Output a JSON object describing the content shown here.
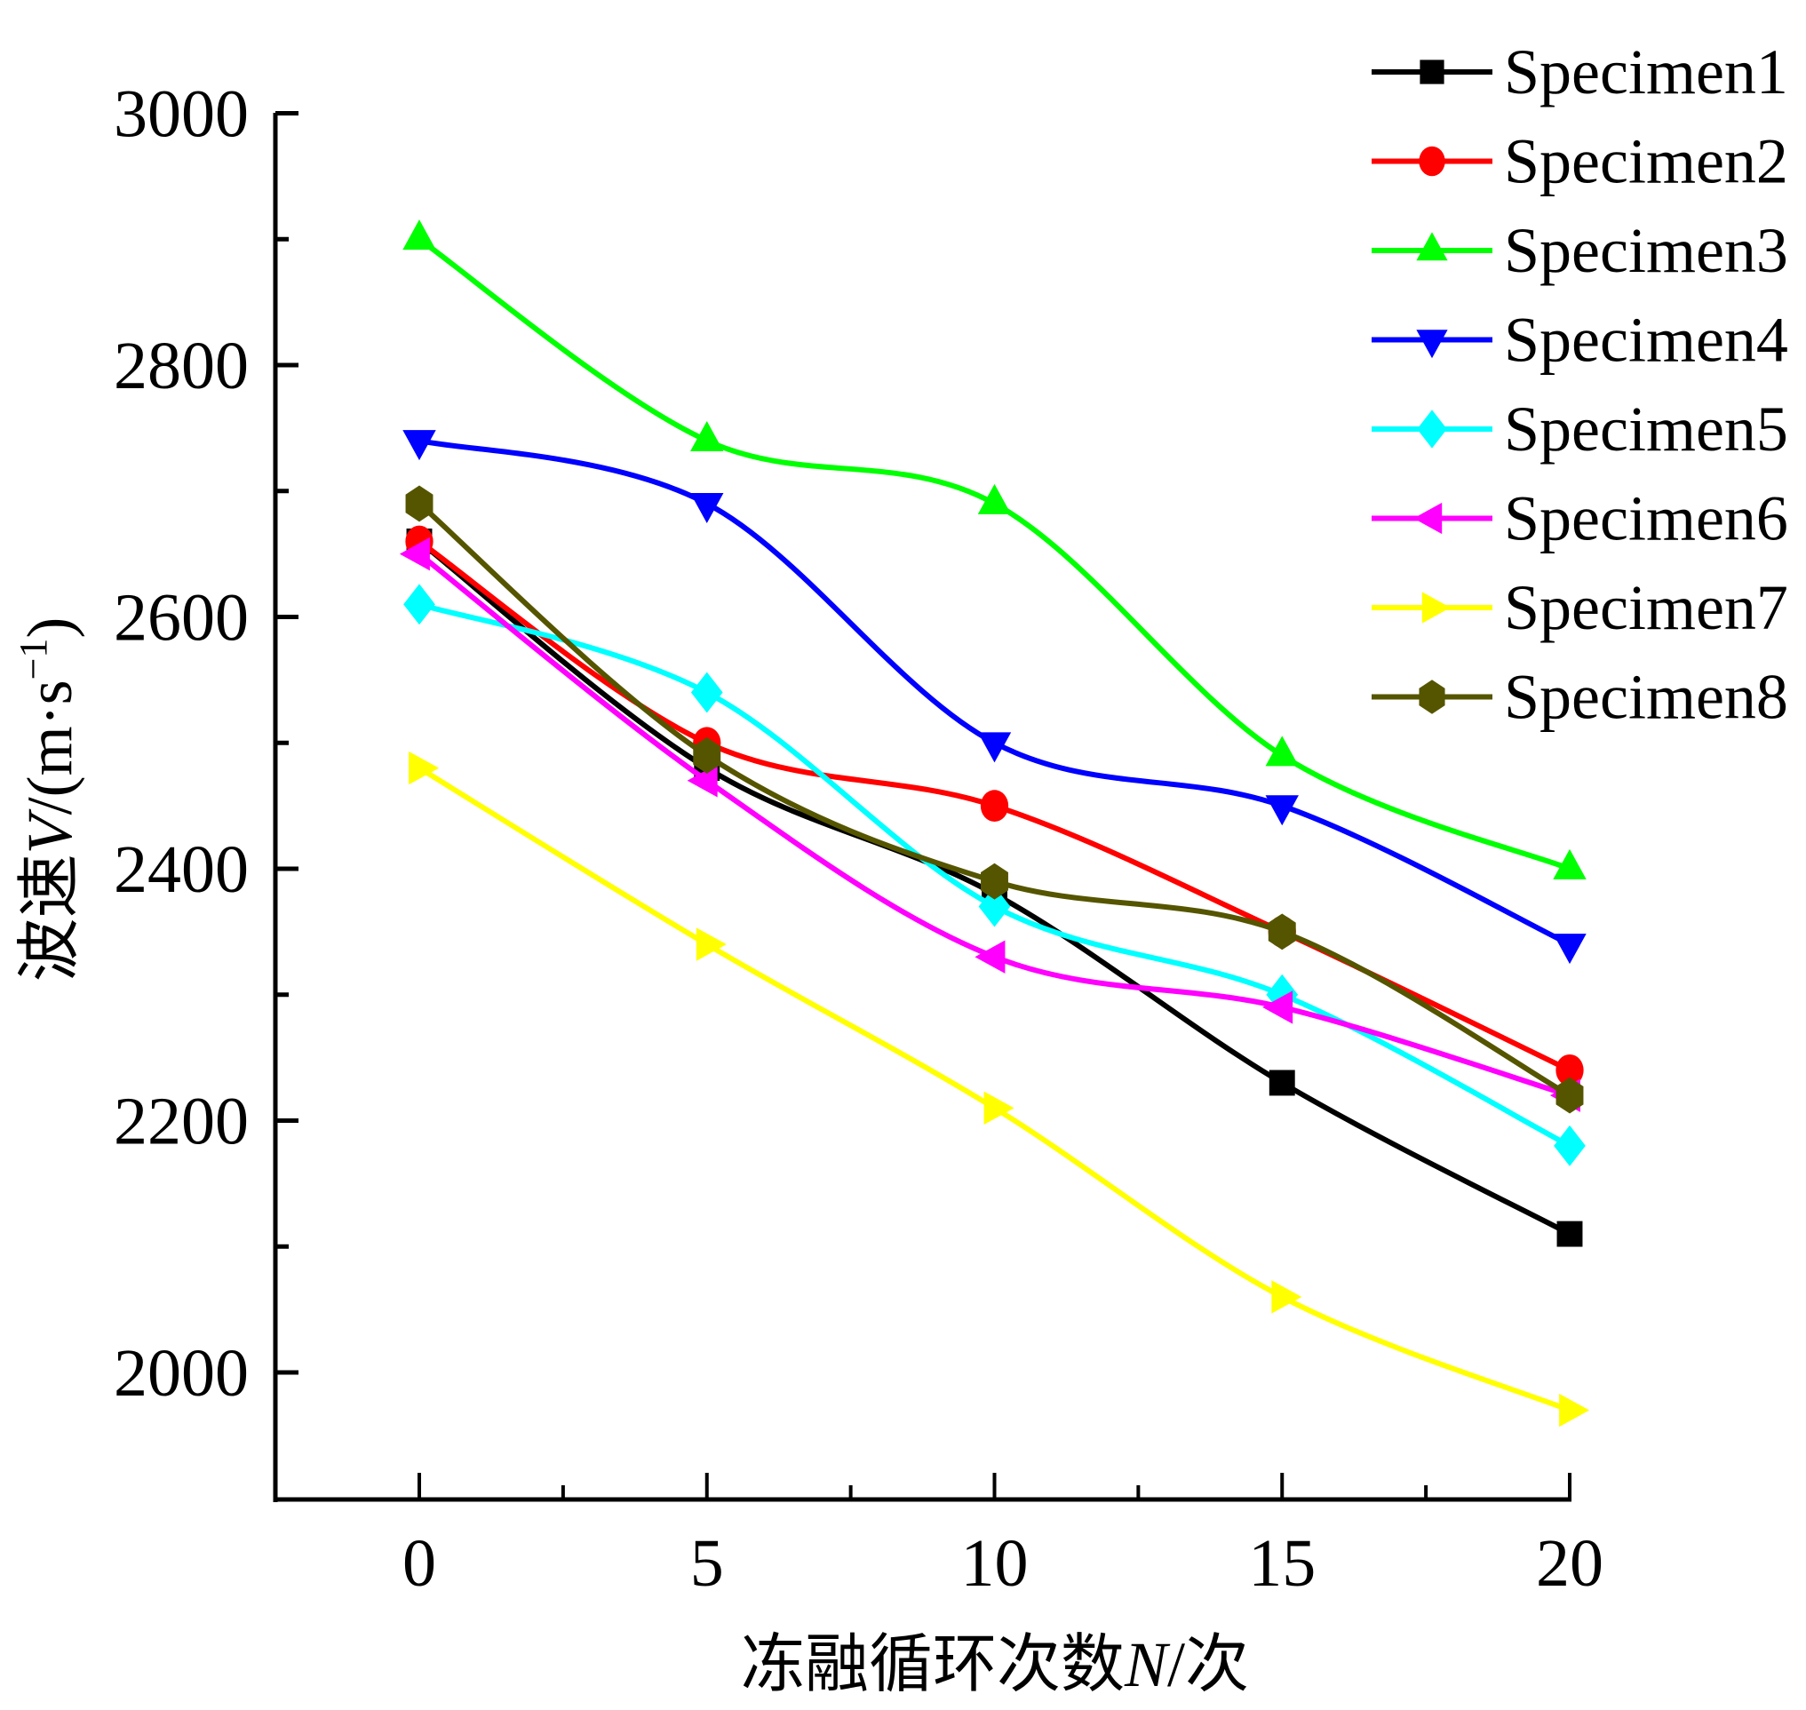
{
  "chart_data": {
    "type": "line",
    "title": "",
    "xlabel": "冻融循环次数N/次",
    "xlabel_parts": {
      "prefix": "冻融循环次数",
      "var": "N",
      "suffix": "/次"
    },
    "ylabel": "波速V/(m·s⁻¹)",
    "ylabel_parts": {
      "prefix": "波速",
      "var": "V",
      "unit": "/(m·s",
      "sup": "−1",
      "close": ")"
    },
    "x": [
      0,
      5,
      10,
      15,
      20
    ],
    "xlim": [
      -2.5,
      20
    ],
    "ylim": [
      1900,
      3000
    ],
    "xticks": [
      0,
      5,
      10,
      15,
      20
    ],
    "xtick_labels": [
      "0",
      "5",
      "10",
      "15",
      "20"
    ],
    "xminor": [
      2.5,
      7.5,
      12.5,
      17.5
    ],
    "yticks": [
      2000,
      2200,
      2400,
      2600,
      2800,
      3000
    ],
    "ytick_labels": [
      "2000",
      "2200",
      "2400",
      "2600",
      "2800",
      "3000"
    ],
    "yminor": [
      2100,
      2300,
      2500,
      2700,
      2900
    ],
    "grid": false,
    "legend_position": "top-right",
    "series": [
      {
        "name": "Specimen1",
        "color": "#000000",
        "marker": "square",
        "values": [
          2660,
          2480,
          2380,
          2230,
          2110
        ]
      },
      {
        "name": "Specimen2",
        "color": "#ff0000",
        "marker": "circle",
        "values": [
          2660,
          2500,
          2450,
          2350,
          2240
        ]
      },
      {
        "name": "Specimen3",
        "color": "#00ff00",
        "marker": "triangle-up",
        "values": [
          2900,
          2740,
          2690,
          2490,
          2400
        ]
      },
      {
        "name": "Specimen4",
        "color": "#0000ff",
        "marker": "triangle-down",
        "values": [
          2740,
          2690,
          2500,
          2450,
          2340
        ]
      },
      {
        "name": "Specimen5",
        "color": "#00ffff",
        "marker": "diamond",
        "values": [
          2610,
          2540,
          2370,
          2300,
          2180
        ]
      },
      {
        "name": "Specimen6",
        "color": "#ff00ff",
        "marker": "triangle-left",
        "values": [
          2650,
          2470,
          2330,
          2290,
          2220
        ]
      },
      {
        "name": "Specimen7",
        "color": "#ffff00",
        "marker": "triangle-right",
        "values": [
          2480,
          2340,
          2210,
          2060,
          1970
        ]
      },
      {
        "name": "Specimen8",
        "color": "#555500",
        "marker": "hexagon",
        "values": [
          2690,
          2490,
          2390,
          2350,
          2220
        ]
      }
    ]
  }
}
